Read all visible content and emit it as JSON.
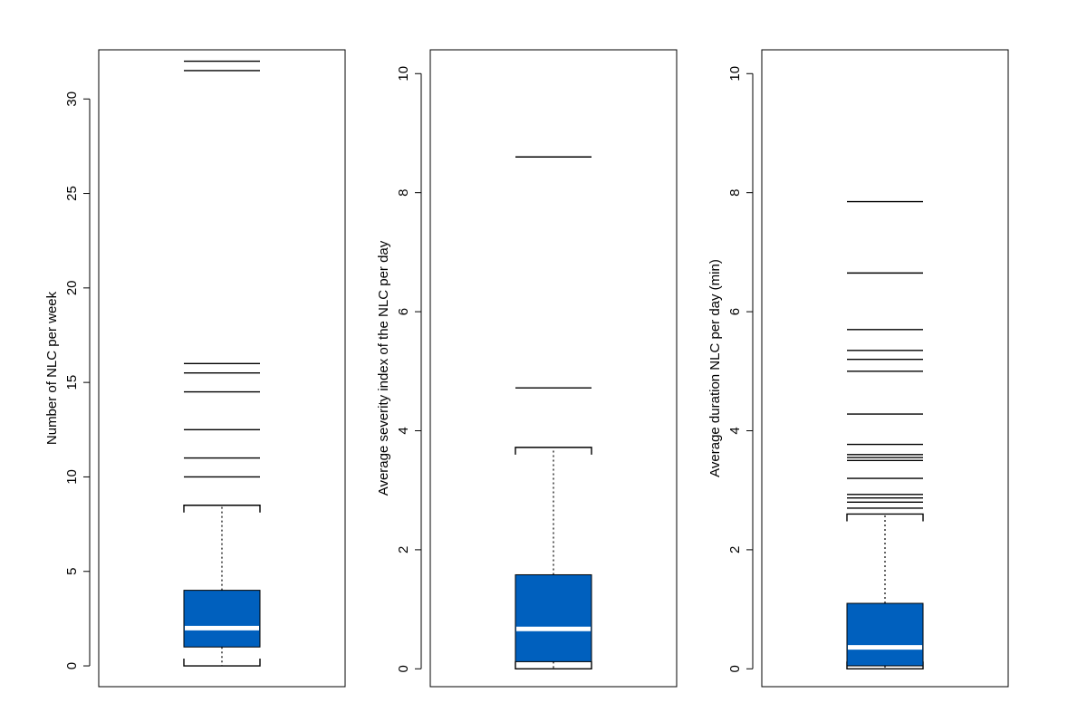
{
  "colors": {
    "box_fill": "#0060BE",
    "median": "#ffffff",
    "line": "#000000"
  },
  "chart_data": [
    {
      "type": "box",
      "ylabel": "Number of NLC per week",
      "ylim": [
        -1.1,
        32.6
      ],
      "yticks": [
        0,
        5,
        10,
        15,
        20,
        25,
        30
      ],
      "grid": false,
      "box": {
        "whisker_low": 0,
        "q1": 1,
        "median": 2,
        "q3": 4,
        "whisker_high": 8.5
      },
      "outliers": [
        10,
        11,
        12.5,
        14.5,
        15.5,
        16,
        31.5,
        32
      ]
    },
    {
      "type": "box",
      "ylabel": "Average severity index of the NLC per day",
      "ylim": [
        -0.3,
        10.4
      ],
      "yticks": [
        0,
        2,
        4,
        6,
        8,
        10
      ],
      "grid": false,
      "box": {
        "whisker_low": 0,
        "q1": 0.12,
        "median": 0.67,
        "q3": 1.58,
        "whisker_high": 3.72
      },
      "outliers": [
        4.72,
        8.6
      ]
    },
    {
      "type": "box",
      "ylabel": "Average duration NLC per day (min)",
      "ylim": [
        -0.3,
        10.4
      ],
      "yticks": [
        0,
        2,
        4,
        6,
        8,
        10
      ],
      "grid": false,
      "box": {
        "whisker_low": 0,
        "q1": 0.05,
        "median": 0.36,
        "q3": 1.1,
        "whisker_high": 2.6
      },
      "outliers": [
        2.7,
        2.8,
        2.87,
        2.93,
        3.2,
        3.5,
        3.55,
        3.6,
        3.77,
        4.28,
        5.0,
        5.2,
        5.35,
        5.7,
        6.65,
        7.85
      ]
    }
  ]
}
